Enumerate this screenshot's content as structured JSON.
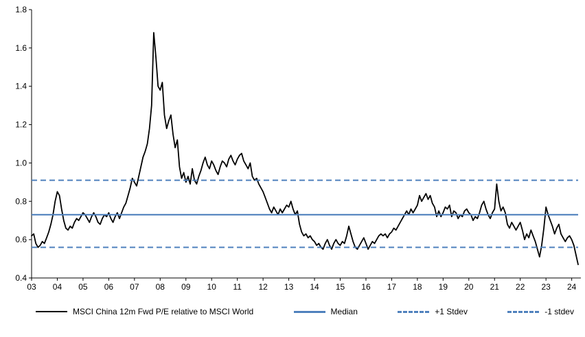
{
  "chart_data": {
    "type": "line",
    "title": "",
    "xlabel": "",
    "ylabel": "",
    "ylim": [
      0.4,
      1.8
    ],
    "yticks": [
      "0.4",
      "0.6",
      "0.8",
      "1.0",
      "1.2",
      "1.4",
      "1.6",
      "1.8"
    ],
    "xticks": [
      "03",
      "04",
      "05",
      "06",
      "07",
      "08",
      "09",
      "10",
      "11",
      "12",
      "13",
      "14",
      "15",
      "16",
      "17",
      "18",
      "19",
      "20",
      "21",
      "22",
      "23",
      "24"
    ],
    "x_start_year": 2003,
    "x_step_months": 1,
    "grid": false,
    "legend_position": "bottom",
    "series_color": "#000000",
    "stat_color": "#4f81bd",
    "median": 0.73,
    "plus1_stdev": 0.91,
    "minus1_stdev": 0.56,
    "series": [
      {
        "name": "MSCI China 12m Fwd P/E relative to MSCI World",
        "values": [
          0.62,
          0.63,
          0.58,
          0.56,
          0.57,
          0.59,
          0.58,
          0.61,
          0.64,
          0.68,
          0.73,
          0.8,
          0.85,
          0.83,
          0.76,
          0.7,
          0.66,
          0.65,
          0.67,
          0.66,
          0.69,
          0.71,
          0.7,
          0.72,
          0.74,
          0.73,
          0.71,
          0.69,
          0.72,
          0.74,
          0.72,
          0.69,
          0.68,
          0.71,
          0.73,
          0.72,
          0.74,
          0.71,
          0.69,
          0.72,
          0.74,
          0.71,
          0.74,
          0.77,
          0.79,
          0.83,
          0.87,
          0.92,
          0.9,
          0.88,
          0.93,
          0.98,
          1.03,
          1.06,
          1.1,
          1.18,
          1.3,
          1.68,
          1.55,
          1.4,
          1.38,
          1.42,
          1.25,
          1.18,
          1.22,
          1.25,
          1.15,
          1.08,
          1.12,
          0.98,
          0.92,
          0.95,
          0.9,
          0.93,
          0.89,
          0.97,
          0.91,
          0.89,
          0.93,
          0.96,
          1.0,
          1.03,
          0.99,
          0.97,
          1.01,
          0.99,
          0.96,
          0.94,
          0.98,
          1.01,
          1.0,
          0.98,
          1.02,
          1.04,
          1.01,
          0.99,
          1.02,
          1.04,
          1.05,
          1.01,
          0.99,
          0.97,
          1.0,
          0.93,
          0.91,
          0.92,
          0.89,
          0.87,
          0.85,
          0.82,
          0.79,
          0.76,
          0.74,
          0.77,
          0.75,
          0.73,
          0.76,
          0.74,
          0.76,
          0.78,
          0.77,
          0.8,
          0.76,
          0.73,
          0.75,
          0.68,
          0.64,
          0.62,
          0.63,
          0.61,
          0.62,
          0.6,
          0.59,
          0.57,
          0.58,
          0.56,
          0.55,
          0.58,
          0.6,
          0.57,
          0.55,
          0.58,
          0.6,
          0.58,
          0.57,
          0.59,
          0.58,
          0.62,
          0.67,
          0.63,
          0.59,
          0.56,
          0.55,
          0.57,
          0.59,
          0.61,
          0.58,
          0.55,
          0.57,
          0.59,
          0.58,
          0.6,
          0.62,
          0.63,
          0.62,
          0.63,
          0.61,
          0.63,
          0.64,
          0.66,
          0.65,
          0.67,
          0.69,
          0.71,
          0.73,
          0.75,
          0.73,
          0.76,
          0.74,
          0.76,
          0.78,
          0.83,
          0.8,
          0.82,
          0.84,
          0.81,
          0.83,
          0.79,
          0.77,
          0.72,
          0.75,
          0.72,
          0.74,
          0.77,
          0.76,
          0.78,
          0.72,
          0.75,
          0.74,
          0.71,
          0.73,
          0.72,
          0.75,
          0.76,
          0.74,
          0.73,
          0.7,
          0.72,
          0.71,
          0.74,
          0.78,
          0.8,
          0.76,
          0.73,
          0.71,
          0.74,
          0.76,
          0.89,
          0.8,
          0.75,
          0.77,
          0.74,
          0.68,
          0.66,
          0.69,
          0.67,
          0.65,
          0.67,
          0.69,
          0.65,
          0.6,
          0.63,
          0.61,
          0.65,
          0.62,
          0.59,
          0.55,
          0.51,
          0.57,
          0.66,
          0.77,
          0.73,
          0.7,
          0.67,
          0.63,
          0.66,
          0.68,
          0.63,
          0.61,
          0.59,
          0.61,
          0.62,
          0.6,
          0.57,
          0.52,
          0.47
        ]
      }
    ],
    "legend": [
      {
        "label": "MSCI China 12m Fwd P/E relative to MSCI World",
        "style": "solid-black"
      },
      {
        "label": "Median",
        "style": "solid-blue"
      },
      {
        "label": "+1 Stdev",
        "style": "dashed-blue"
      },
      {
        "label": "-1 stdev",
        "style": "dashed-blue"
      }
    ]
  }
}
